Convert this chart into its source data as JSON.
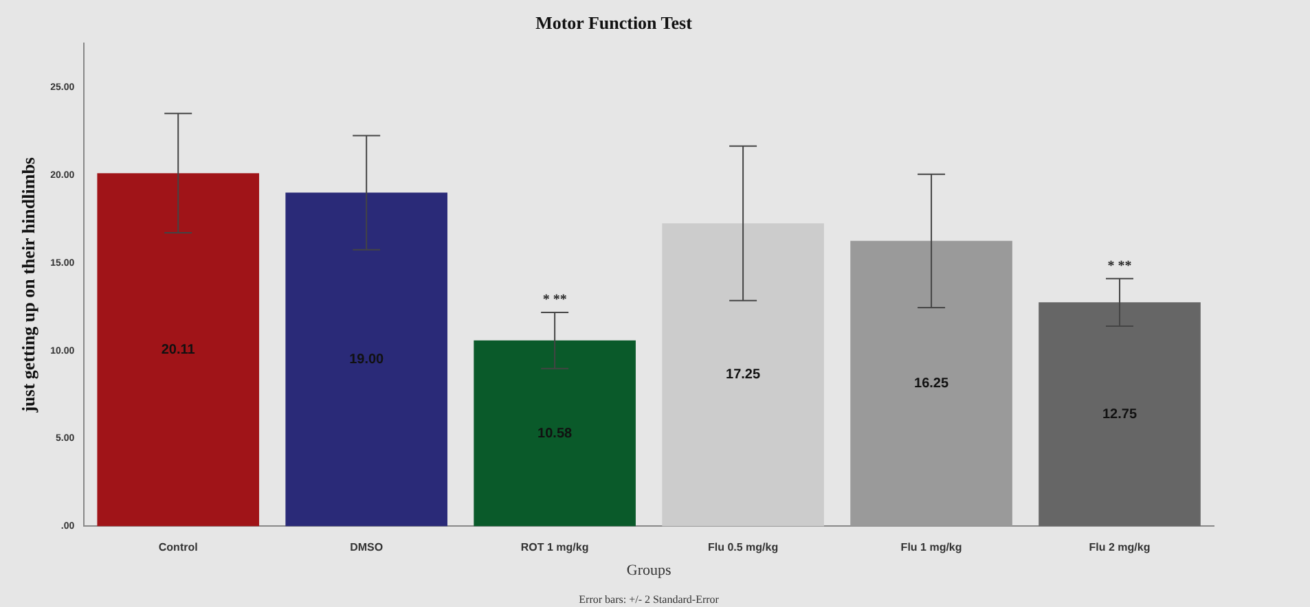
{
  "chart_data": {
    "type": "bar",
    "title": "Motor Function Test",
    "xlabel": "Groups",
    "ylabel": "just getting up on their hindlimbs",
    "categories": [
      "Control",
      "DMSO",
      "ROT 1 mg/kg",
      "Flu 0.5 mg/kg",
      "Flu 1 mg/kg",
      "Flu 2 mg/kg"
    ],
    "values": [
      20.11,
      19.0,
      10.58,
      17.25,
      16.25,
      12.75
    ],
    "colors": [
      "#a01418",
      "#2a2a78",
      "#0a5a2a",
      "#cccccc",
      "#9a9a9a",
      "#666666"
    ],
    "errors": [
      3.4,
      3.25,
      1.6,
      4.4,
      3.8,
      1.35
    ],
    "value_labels": [
      "20.11",
      "19.00",
      "10.58",
      "17.25",
      "16.25",
      "12.75"
    ],
    "ylim": [
      0,
      27.5
    ],
    "yticks": [
      {
        "value": 0,
        "label": ".00"
      },
      {
        "value": 5,
        "label": "5.00"
      },
      {
        "value": 10,
        "label": "10.00"
      },
      {
        "value": 15,
        "label": "15.00"
      },
      {
        "value": 20,
        "label": "20.00"
      },
      {
        "value": 25,
        "label": "25.00"
      }
    ],
    "grid": false,
    "legend": false,
    "annotations": [
      {
        "text": "* **",
        "x": "ROT 1 mg/kg",
        "y": 10.58
      },
      {
        "text": "* **",
        "x": "Flu 2 mg/kg",
        "y": 12.75
      },
      "Error bars: +/- 2 Standard-Error"
    ]
  }
}
